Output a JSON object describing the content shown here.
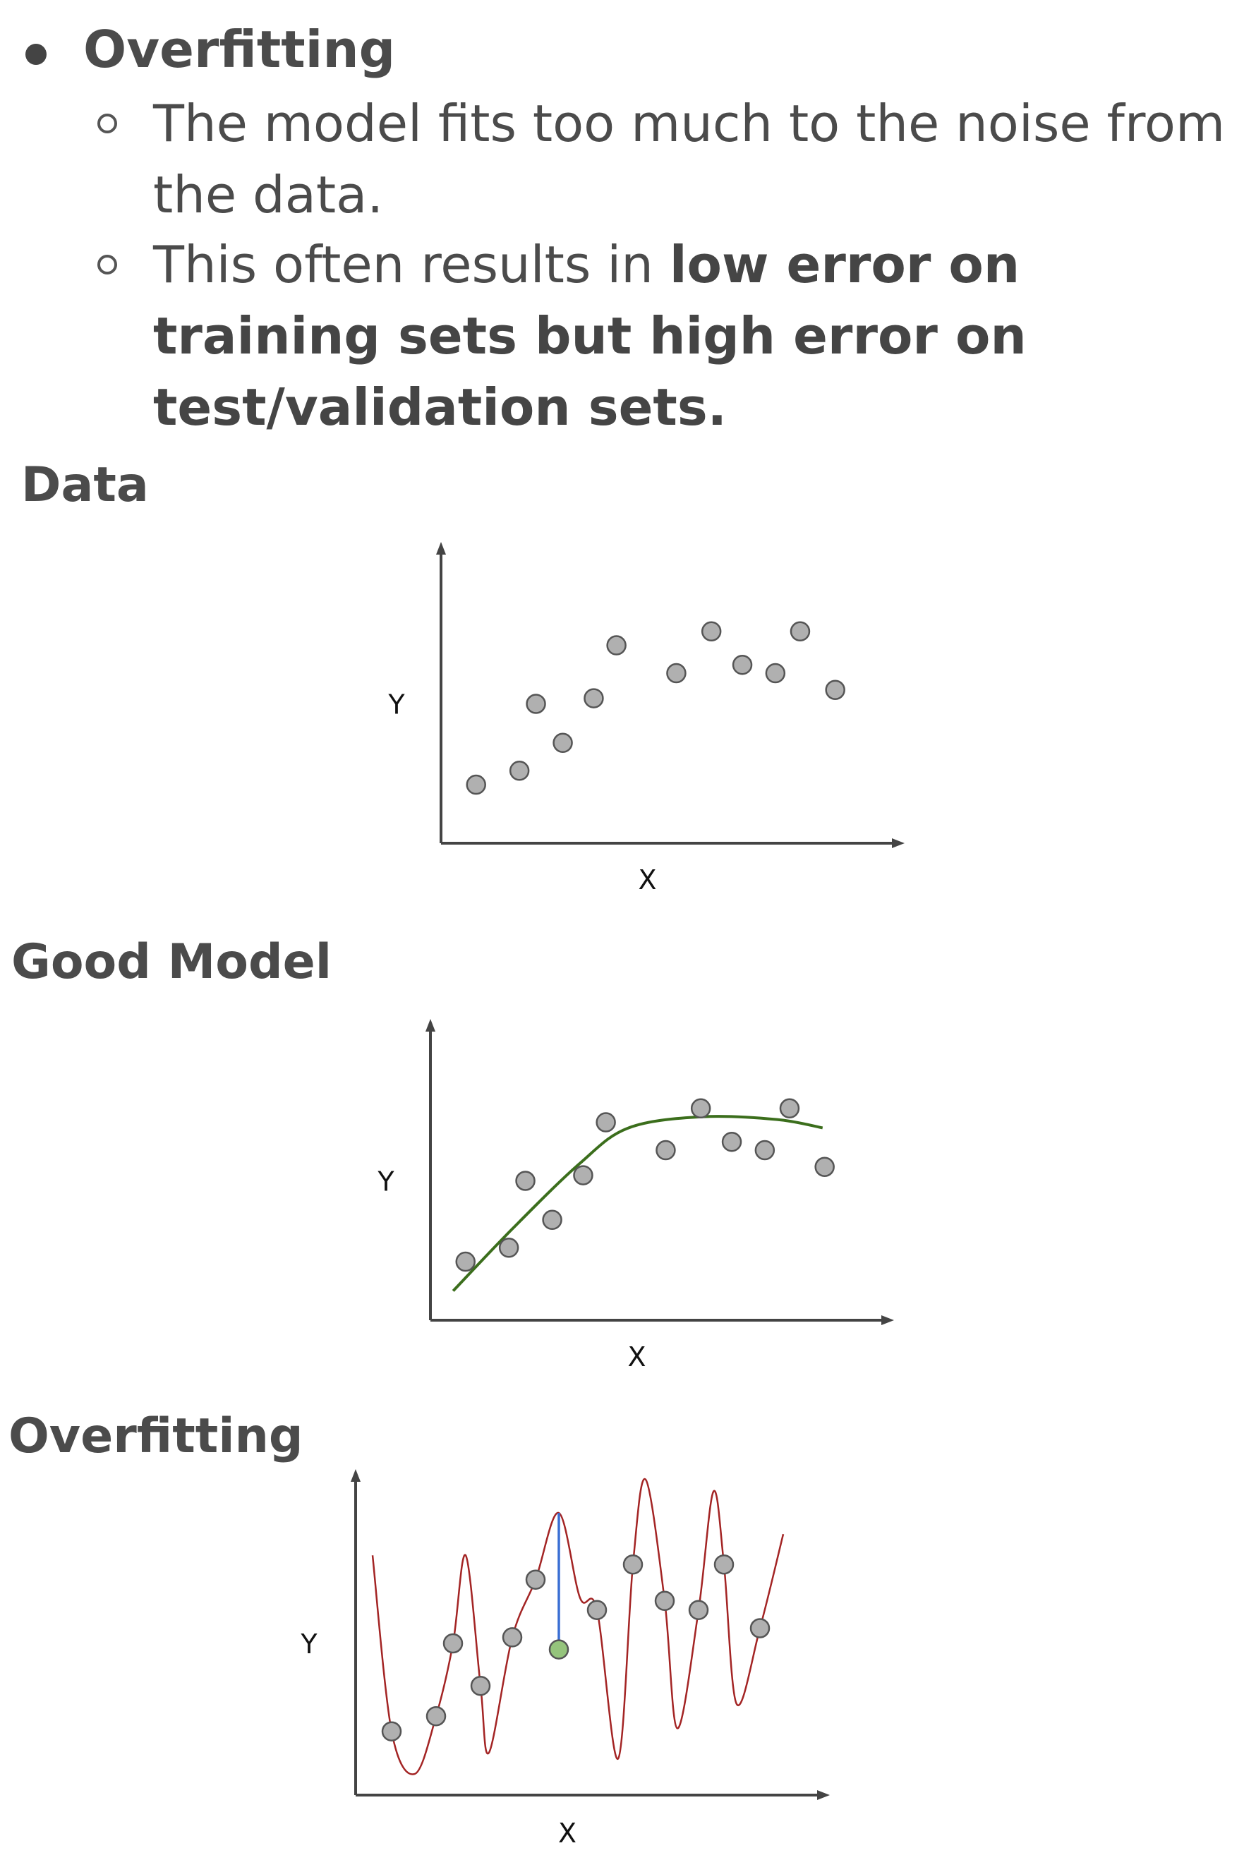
{
  "bullets": {
    "main": "Overfitting",
    "sub1": "The model fits too much to the noise from the data.",
    "sub2_plain": "This often results in ",
    "sub2_bold": "low error on training sets but high error on test/validation sets."
  },
  "sections": [
    {
      "title": "Data"
    },
    {
      "title": "Good Model"
    },
    {
      "title": "Overfitting"
    }
  ],
  "colors": {
    "point_fill": "#b0b0b0",
    "point_stroke": "#555555",
    "good_fit_curve": "#3b6e1c",
    "overfit_curve": "#a32424",
    "test_point": "#95c47c",
    "residual_line": "#3a6fd4",
    "axis": "#444444"
  },
  "chart_data": [
    {
      "type": "scatter",
      "title": "Data",
      "xlabel": "X",
      "ylabel": "Y",
      "xlim": [
        0,
        10
      ],
      "ylim": [
        0,
        10
      ],
      "points": [
        {
          "x": 0.85,
          "y": 2.1
        },
        {
          "x": 1.9,
          "y": 2.6
        },
        {
          "x": 2.3,
          "y": 5.0
        },
        {
          "x": 2.95,
          "y": 3.6
        },
        {
          "x": 3.7,
          "y": 5.2
        },
        {
          "x": 4.25,
          "y": 7.1
        },
        {
          "x": 5.7,
          "y": 6.1
        },
        {
          "x": 6.55,
          "y": 7.6
        },
        {
          "x": 7.3,
          "y": 6.4
        },
        {
          "x": 8.1,
          "y": 6.1
        },
        {
          "x": 8.7,
          "y": 7.6
        },
        {
          "x": 9.55,
          "y": 5.5
        }
      ]
    },
    {
      "type": "scatter",
      "title": "Good Model",
      "xlabel": "X",
      "ylabel": "Y",
      "xlim": [
        0,
        10
      ],
      "ylim": [
        0,
        10
      ],
      "points": [
        {
          "x": 0.85,
          "y": 2.1
        },
        {
          "x": 1.9,
          "y": 2.6
        },
        {
          "x": 2.3,
          "y": 5.0
        },
        {
          "x": 2.95,
          "y": 3.6
        },
        {
          "x": 3.7,
          "y": 5.2
        },
        {
          "x": 4.25,
          "y": 7.1
        },
        {
          "x": 5.7,
          "y": 6.1
        },
        {
          "x": 6.55,
          "y": 7.6
        },
        {
          "x": 7.3,
          "y": 6.4
        },
        {
          "x": 8.1,
          "y": 6.1
        },
        {
          "x": 8.7,
          "y": 7.6
        },
        {
          "x": 9.55,
          "y": 5.5
        }
      ],
      "curve": [
        {
          "x": 0.55,
          "y": 1.05
        },
        {
          "x": 2.0,
          "y": 3.3
        },
        {
          "x": 3.6,
          "y": 5.6
        },
        {
          "x": 4.8,
          "y": 6.9
        },
        {
          "x": 6.6,
          "y": 7.3
        },
        {
          "x": 8.4,
          "y": 7.2
        },
        {
          "x": 9.5,
          "y": 6.9
        }
      ]
    },
    {
      "type": "scatter",
      "title": "Overfitting",
      "xlabel": "X",
      "ylabel": "Y",
      "xlim": [
        0,
        10
      ],
      "ylim": [
        0,
        10
      ],
      "points": [
        {
          "x": 0.85,
          "y": 2.1
        },
        {
          "x": 1.9,
          "y": 2.6
        },
        {
          "x": 2.3,
          "y": 5.0
        },
        {
          "x": 2.95,
          "y": 3.6
        },
        {
          "x": 3.7,
          "y": 5.2
        },
        {
          "x": 4.25,
          "y": 7.1
        },
        {
          "x": 5.7,
          "y": 6.1
        },
        {
          "x": 6.55,
          "y": 7.6
        },
        {
          "x": 7.3,
          "y": 6.4
        },
        {
          "x": 8.1,
          "y": 6.1
        },
        {
          "x": 8.7,
          "y": 7.6
        },
        {
          "x": 9.55,
          "y": 5.5
        }
      ],
      "test_point": {
        "x": 4.8,
        "y": 4.8
      },
      "curve": [
        {
          "x": 0.4,
          "y": 7.9
        },
        {
          "x": 0.85,
          "y": 2.1
        },
        {
          "x": 1.4,
          "y": 0.7
        },
        {
          "x": 1.9,
          "y": 2.6
        },
        {
          "x": 2.3,
          "y": 5.0
        },
        {
          "x": 2.6,
          "y": 7.9
        },
        {
          "x": 2.95,
          "y": 3.6
        },
        {
          "x": 3.15,
          "y": 1.4
        },
        {
          "x": 3.7,
          "y": 5.2
        },
        {
          "x": 4.25,
          "y": 7.1
        },
        {
          "x": 4.8,
          "y": 9.3
        },
        {
          "x": 5.3,
          "y": 6.5
        },
        {
          "x": 5.7,
          "y": 6.1
        },
        {
          "x": 6.2,
          "y": 1.2
        },
        {
          "x": 6.55,
          "y": 7.6
        },
        {
          "x": 6.85,
          "y": 10.4
        },
        {
          "x": 7.3,
          "y": 6.4
        },
        {
          "x": 7.6,
          "y": 2.2
        },
        {
          "x": 8.1,
          "y": 6.1
        },
        {
          "x": 8.45,
          "y": 10.0
        },
        {
          "x": 8.7,
          "y": 7.6
        },
        {
          "x": 9.0,
          "y": 3.0
        },
        {
          "x": 9.55,
          "y": 5.5
        },
        {
          "x": 10.1,
          "y": 8.6
        }
      ]
    }
  ]
}
